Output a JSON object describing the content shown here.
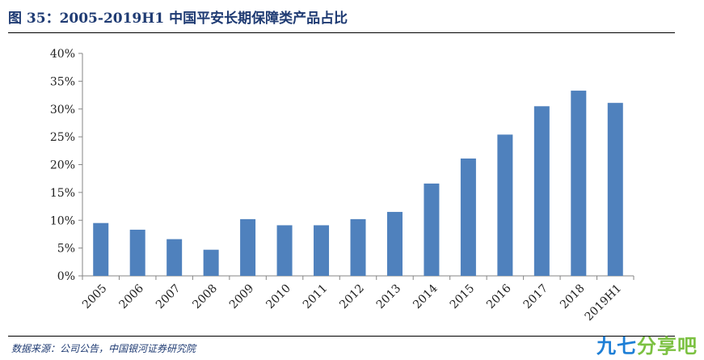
{
  "figure": {
    "title": "图 35：2005-2019H1 中国平安长期保障类产品占比",
    "source": "数据来源：公司公告，中国银河证券研究院",
    "watermark_main": "九七",
    "watermark_accent": "分享吧"
  },
  "colors": {
    "bar": "#4f81bd",
    "axis": "#868686",
    "title": "#1f3b73",
    "watermark": "#1e7fd6",
    "watermark_accent": "#7cc142"
  },
  "chart_data": {
    "type": "bar",
    "title": "",
    "xlabel": "",
    "ylabel": "",
    "categories": [
      "2005",
      "2006",
      "2007",
      "2008",
      "2009",
      "2010",
      "2011",
      "2012",
      "2013",
      "2014",
      "2015",
      "2016",
      "2017",
      "2018",
      "2019H1"
    ],
    "values": [
      9.5,
      8.3,
      6.6,
      4.7,
      10.2,
      9.1,
      9.1,
      10.2,
      11.5,
      16.6,
      21.1,
      25.4,
      30.5,
      33.3,
      31.1
    ],
    "unit": "%",
    "ylim": [
      0,
      40
    ],
    "yticks": [
      "0%",
      "5%",
      "10%",
      "15%",
      "20%",
      "25%",
      "30%",
      "35%",
      "40%"
    ],
    "grid": false,
    "legend": "none"
  }
}
